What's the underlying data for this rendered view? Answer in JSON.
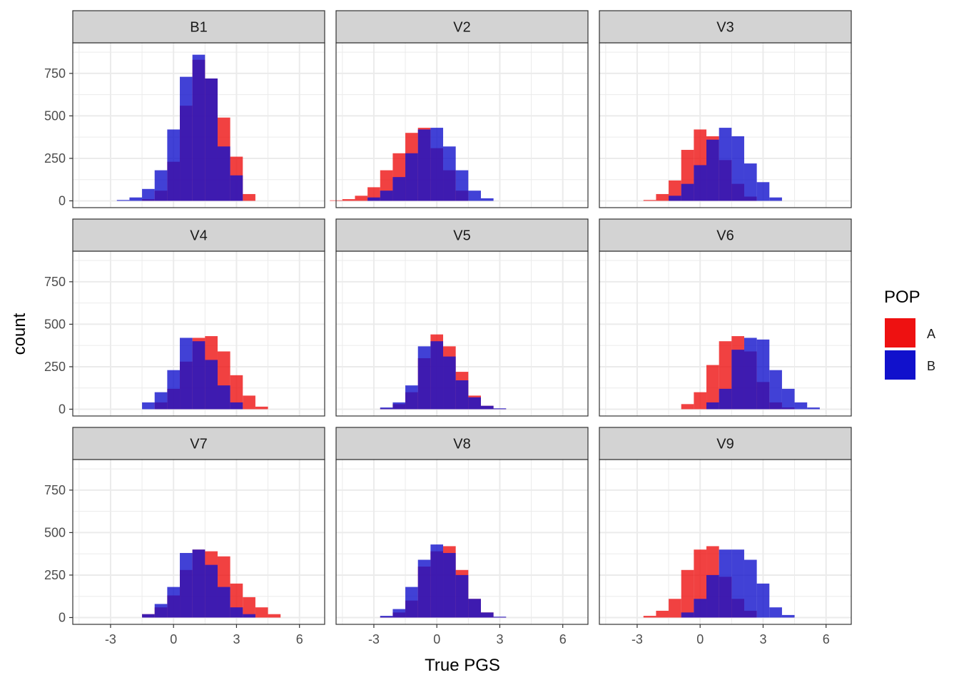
{
  "chart_data": {
    "type": "bar",
    "chart_kind": "faceted-histogram",
    "xlabel": "True PGS",
    "ylabel": "count",
    "xlim": [
      -4.8,
      7.2
    ],
    "ylim": [
      -40,
      930
    ],
    "x_ticks": [
      -3,
      0,
      3,
      6
    ],
    "y_ticks": [
      0,
      250,
      500,
      750
    ],
    "grid": true,
    "bin_width": 0.6,
    "legend": {
      "title": "POP",
      "position": "right",
      "entries": [
        {
          "name": "A",
          "color": "#EE1111"
        },
        {
          "name": "B",
          "color": "#1111CC"
        }
      ]
    },
    "colors": {
      "A": "#EE1111",
      "B": "#1111CC",
      "panel_bg": "#FFFFFF",
      "strip_bg": "#D3D3D3",
      "grid": "#EBEBEB"
    },
    "facets": [
      {
        "label": "B1",
        "A": {
          "x": [
            -1.2,
            -0.6,
            0.0,
            0.6,
            1.2,
            1.8,
            2.4,
            3.0,
            3.6
          ],
          "y": [
            10,
            60,
            230,
            560,
            830,
            720,
            490,
            260,
            40
          ]
        },
        "B": {
          "x": [
            -2.4,
            -1.8,
            -1.2,
            -0.6,
            0.0,
            0.6,
            1.2,
            1.8,
            2.4,
            3.0
          ],
          "y": [
            5,
            20,
            70,
            180,
            420,
            730,
            860,
            720,
            320,
            150
          ]
        }
      },
      {
        "label": "V2",
        "A": {
          "x": [
            -4.8,
            -4.2,
            -3.6,
            -3.0,
            -2.4,
            -1.8,
            -1.2,
            -0.6,
            0.0,
            0.6,
            1.2
          ],
          "y": [
            3,
            10,
            30,
            80,
            180,
            280,
            400,
            430,
            310,
            180,
            60
          ]
        },
        "B": {
          "x": [
            -3.0,
            -2.4,
            -1.8,
            -1.2,
            -0.6,
            0.0,
            0.6,
            1.2,
            1.8,
            2.4
          ],
          "y": [
            20,
            60,
            140,
            280,
            420,
            430,
            320,
            180,
            60,
            15
          ]
        }
      },
      {
        "label": "V3",
        "A": {
          "x": [
            -2.4,
            -1.8,
            -1.2,
            -0.6,
            0.0,
            0.6,
            1.2,
            1.8,
            2.4
          ],
          "y": [
            5,
            40,
            120,
            300,
            420,
            380,
            240,
            100,
            25
          ]
        },
        "B": {
          "x": [
            -1.2,
            -0.6,
            0.0,
            0.6,
            1.2,
            1.8,
            2.4,
            3.0,
            3.6
          ],
          "y": [
            30,
            100,
            210,
            360,
            430,
            380,
            220,
            110,
            20
          ]
        }
      },
      {
        "label": "V4",
        "A": {
          "x": [
            -0.6,
            0.0,
            0.6,
            1.2,
            1.8,
            2.4,
            3.0,
            3.6,
            4.2
          ],
          "y": [
            40,
            120,
            280,
            420,
            430,
            340,
            200,
            80,
            15
          ]
        },
        "B": {
          "x": [
            -1.2,
            -0.6,
            0.0,
            0.6,
            1.2,
            1.8,
            2.4,
            3.0
          ],
          "y": [
            40,
            100,
            230,
            420,
            400,
            290,
            140,
            40
          ]
        }
      },
      {
        "label": "V5",
        "A": {
          "x": [
            -2.4,
            -1.8,
            -1.2,
            -0.6,
            0.0,
            0.6,
            1.2,
            1.8,
            2.4,
            3.0
          ],
          "y": [
            5,
            30,
            100,
            300,
            440,
            370,
            220,
            80,
            20,
            3
          ]
        },
        "B": {
          "x": [
            -2.4,
            -1.8,
            -1.2,
            -0.6,
            0.0,
            0.6,
            1.2,
            1.8,
            2.4,
            3.0
          ],
          "y": [
            10,
            40,
            140,
            370,
            400,
            310,
            170,
            70,
            20,
            5
          ]
        }
      },
      {
        "label": "V6",
        "A": {
          "x": [
            -0.6,
            0.0,
            0.6,
            1.2,
            1.8,
            2.4,
            3.0,
            3.6,
            4.2
          ],
          "y": [
            30,
            100,
            260,
            400,
            430,
            340,
            160,
            40,
            10
          ]
        },
        "B": {
          "x": [
            0.6,
            1.2,
            1.8,
            2.4,
            3.0,
            3.6,
            4.2,
            4.8,
            5.4
          ],
          "y": [
            40,
            120,
            350,
            420,
            410,
            230,
            120,
            40,
            10
          ]
        }
      },
      {
        "label": "V7",
        "A": {
          "x": [
            -1.2,
            -0.6,
            0.0,
            0.6,
            1.2,
            1.8,
            2.4,
            3.0,
            3.6,
            4.2,
            4.8
          ],
          "y": [
            20,
            60,
            130,
            280,
            400,
            390,
            360,
            200,
            120,
            60,
            20
          ]
        },
        "B": {
          "x": [
            -1.2,
            -0.6,
            0.0,
            0.6,
            1.2,
            1.8,
            2.4,
            3.0,
            3.6
          ],
          "y": [
            20,
            80,
            180,
            380,
            400,
            310,
            180,
            60,
            20
          ]
        }
      },
      {
        "label": "V8",
        "A": {
          "x": [
            -2.4,
            -1.8,
            -1.2,
            -0.6,
            0.0,
            0.6,
            1.2,
            1.8,
            2.4,
            3.0
          ],
          "y": [
            5,
            30,
            100,
            300,
            390,
            420,
            280,
            110,
            30,
            3
          ]
        },
        "B": {
          "x": [
            -2.4,
            -1.8,
            -1.2,
            -0.6,
            0.0,
            0.6,
            1.2,
            1.8,
            2.4,
            3.0
          ],
          "y": [
            10,
            50,
            180,
            340,
            430,
            380,
            250,
            110,
            30,
            5
          ]
        }
      },
      {
        "label": "V9",
        "A": {
          "x": [
            -2.4,
            -1.8,
            -1.2,
            -0.6,
            0.0,
            0.6,
            1.2,
            1.8,
            2.4
          ],
          "y": [
            10,
            40,
            110,
            280,
            400,
            420,
            240,
            110,
            40
          ]
        },
        "B": {
          "x": [
            -0.6,
            0.0,
            0.6,
            1.2,
            1.8,
            2.4,
            3.0,
            3.6,
            4.2
          ],
          "y": [
            30,
            110,
            250,
            400,
            400,
            340,
            200,
            60,
            15
          ]
        }
      }
    ]
  }
}
